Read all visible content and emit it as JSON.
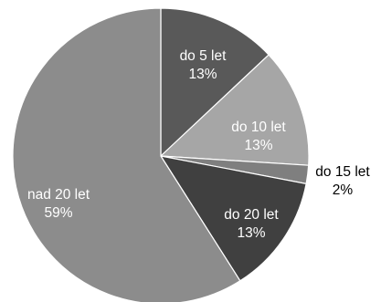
{
  "chart_data": {
    "type": "pie",
    "title": "",
    "start_angle_deg": 0,
    "direction": "clockwise",
    "legend": "none",
    "slices": [
      {
        "label": "do 5 let",
        "pct_label": "13%",
        "value": 13,
        "color": "#595959"
      },
      {
        "label": "do 10 let",
        "pct_label": "13%",
        "value": 13,
        "color": "#a6a6a6"
      },
      {
        "label": "do 15 let",
        "pct_label": "2%",
        "value": 2,
        "color": "#7f7f7f"
      },
      {
        "label": "do 20 let",
        "pct_label": "13%",
        "value": 13,
        "color": "#404040"
      },
      {
        "label": "nad 20 let",
        "pct_label": "59%",
        "value": 59,
        "color": "#8c8c8c"
      }
    ]
  }
}
